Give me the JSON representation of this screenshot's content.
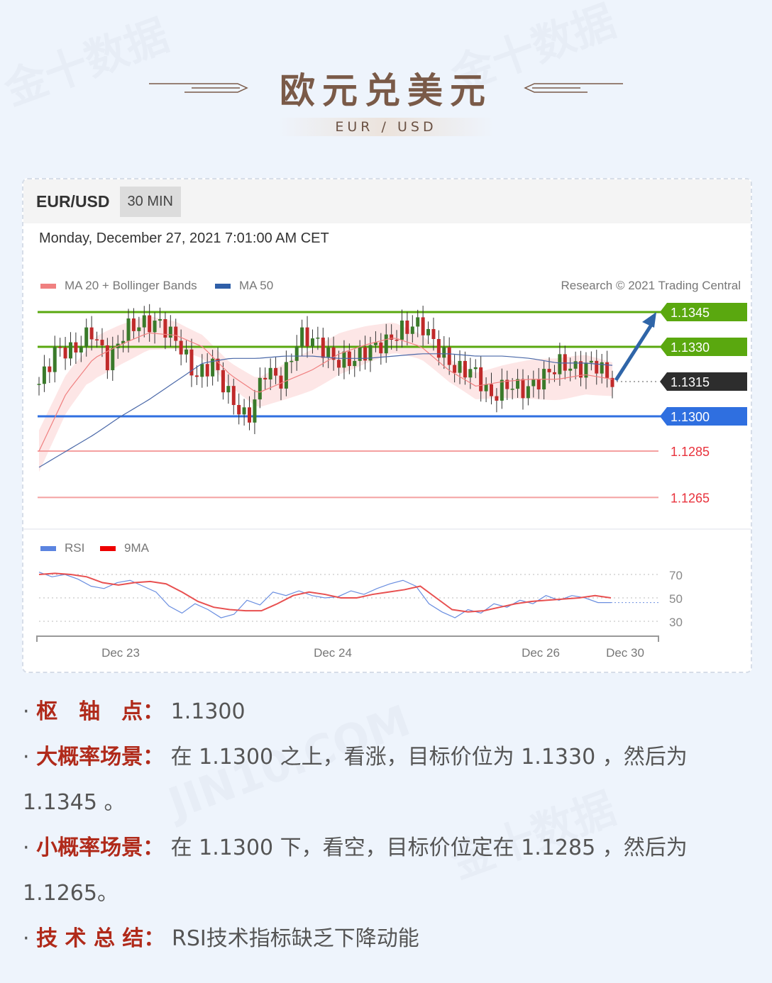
{
  "header": {
    "title": "欧元兑美元",
    "subtitle": "EUR / USD"
  },
  "card": {
    "pair": "EUR/USD",
    "timeframe": "30 MIN",
    "datetime": "Monday, December 27, 2021 7:01:00 AM CET",
    "legend_ma20": "MA 20 + Bollinger Bands",
    "legend_ma50": "MA 50",
    "credit": "Research © 2021 Trading Central",
    "rsi_legend": "RSI",
    "ma9_legend": "9MA"
  },
  "watermark": [
    "金十数据",
    "JIN10.COM"
  ],
  "colors": {
    "green": "#5aa80f",
    "blue": "#2f6fe0",
    "dark": "#2d2d2d",
    "red": "#e8323c",
    "ma20": "#f08080",
    "ma50": "#4a68a8",
    "band": "#fde0e0",
    "arrow": "#2f65a8",
    "up": "#3a7a2a",
    "down": "#c02a2a"
  },
  "chart_data": [
    {
      "type": "candlestick",
      "title": "",
      "price_levels": [
        {
          "label": "1.1345",
          "value": 1.1345,
          "style": "green"
        },
        {
          "label": "1.1330",
          "value": 1.133,
          "style": "green"
        },
        {
          "label": "1.1315",
          "value": 1.1315,
          "style": "dark"
        },
        {
          "label": "1.1300",
          "value": 1.13,
          "style": "blue"
        },
        {
          "label": "1.1285",
          "value": 1.1285,
          "style": "red"
        },
        {
          "label": "1.1265",
          "value": 1.1265,
          "style": "red"
        }
      ],
      "close_path": [
        1.1314,
        1.1329,
        1.1328,
        1.1337,
        1.1323,
        1.1338,
        1.134,
        1.134,
        1.1332,
        1.1317,
        1.1323,
        1.1308,
        1.1298,
        1.132,
        1.1315,
        1.1335,
        1.1332,
        1.1324,
        1.1324,
        1.1329,
        1.1332,
        1.1338,
        1.134,
        1.1329,
        1.132,
        1.132,
        1.1308,
        1.1314,
        1.1311,
        1.1317,
        1.1323,
        1.132,
        1.1323,
        1.1315
      ],
      "ma50": [
        1.1278,
        1.1285,
        1.1292,
        1.13,
        1.1307,
        1.1315,
        1.1323,
        1.1325,
        1.1325,
        1.1326,
        1.1326,
        1.1325,
        1.1325,
        1.1326,
        1.1327,
        1.1327,
        1.1326,
        1.1326,
        1.1325,
        1.1323,
        1.1323,
        1.1322
      ],
      "ma20": [
        1.1285,
        1.131,
        1.1325,
        1.1331,
        1.1336,
        1.1335,
        1.133,
        1.1318,
        1.131,
        1.1315,
        1.132,
        1.1327,
        1.1331,
        1.1334,
        1.133,
        1.132,
        1.1313,
        1.1315,
        1.1316,
        1.1316,
        1.1318,
        1.1316
      ],
      "forecast_target": 1.1345
    },
    {
      "type": "line",
      "title": "",
      "yticks": [
        70,
        50,
        30
      ],
      "xticks": [
        "Dec 23",
        "Dec 24",
        "Dec 26",
        "Dec 30"
      ],
      "series": [
        {
          "name": "RSI",
          "values": [
            72,
            68,
            70,
            66,
            60,
            58,
            63,
            65,
            60,
            55,
            43,
            37,
            45,
            40,
            33,
            36,
            48,
            44,
            55,
            52,
            56,
            52,
            50,
            51,
            56,
            53,
            58,
            62,
            65,
            60,
            45,
            38,
            33,
            40,
            37,
            45,
            42,
            48,
            45,
            52,
            48,
            52,
            50,
            46,
            46
          ]
        },
        {
          "name": "9MA",
          "values": [
            70,
            71,
            70,
            68,
            63,
            61,
            63,
            64,
            62,
            55,
            47,
            42,
            40,
            39,
            39,
            45,
            52,
            55,
            53,
            50,
            50,
            53,
            55,
            57,
            60,
            50,
            40,
            38,
            39,
            42,
            45,
            47,
            48,
            49,
            50,
            52,
            50
          ]
        }
      ]
    }
  ],
  "analysis": [
    {
      "label": "枢　轴　点：",
      "text": "1.1300"
    },
    {
      "label": "大概率场景：",
      "text": "在 1.1300 之上，看涨，目标价位为 1.1330 ，然后为 1.1345 。"
    },
    {
      "label": "小概率场景：",
      "text": "在 1.1300 下，看空，目标价位定在 1.1285 ，然后为 1.1265。"
    },
    {
      "label": "技 术 总 结：",
      "text": "RSI技术指标缺乏下降动能"
    }
  ]
}
